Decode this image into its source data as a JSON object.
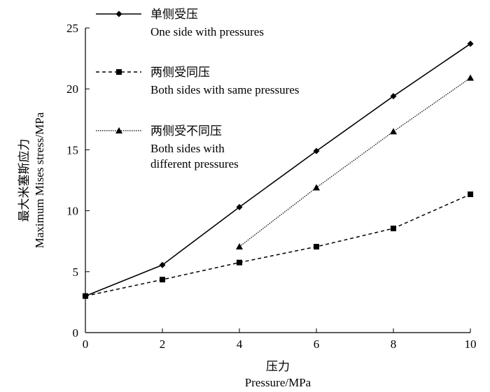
{
  "chart_data": {
    "type": "line",
    "title": "",
    "xlabel_cn": "压力",
    "xlabel": "Pressure/MPa",
    "ylabel_cn": "最大米塞斯应力",
    "ylabel": "Maximum Mises stress/MPa",
    "xlim": [
      0,
      10
    ],
    "ylim": [
      0,
      25
    ],
    "xticks": [
      0,
      2,
      4,
      6,
      8,
      10
    ],
    "yticks": [
      0,
      5,
      10,
      15,
      20,
      25
    ],
    "grid": false,
    "legend_placement": "top-left",
    "series": [
      {
        "name_cn": "单侧受压",
        "name": "One side with pressures",
        "name_lines": [
          "One side with pressures"
        ],
        "marker": "diamond",
        "line": "solid",
        "x": [
          0,
          2,
          4,
          6,
          8,
          10
        ],
        "y": [
          3.0,
          5.55,
          10.3,
          14.9,
          19.4,
          23.7
        ]
      },
      {
        "name_cn": "两侧受同压",
        "name": "Both sides with same pressures",
        "name_lines": [
          "Both sides with same pressures"
        ],
        "marker": "square",
        "line": "dashed",
        "x": [
          0,
          2,
          4,
          6,
          8,
          10
        ],
        "y": [
          3.0,
          4.35,
          5.75,
          7.05,
          8.55,
          11.35
        ]
      },
      {
        "name_cn": "两侧受不同压",
        "name": "Both sides with different pressures",
        "name_lines": [
          "Both sides with",
          "different pressures"
        ],
        "marker": "triangle",
        "line": "dotted",
        "x": [
          4,
          6,
          8,
          10
        ],
        "y": [
          7.05,
          11.9,
          16.5,
          20.9
        ]
      }
    ]
  }
}
